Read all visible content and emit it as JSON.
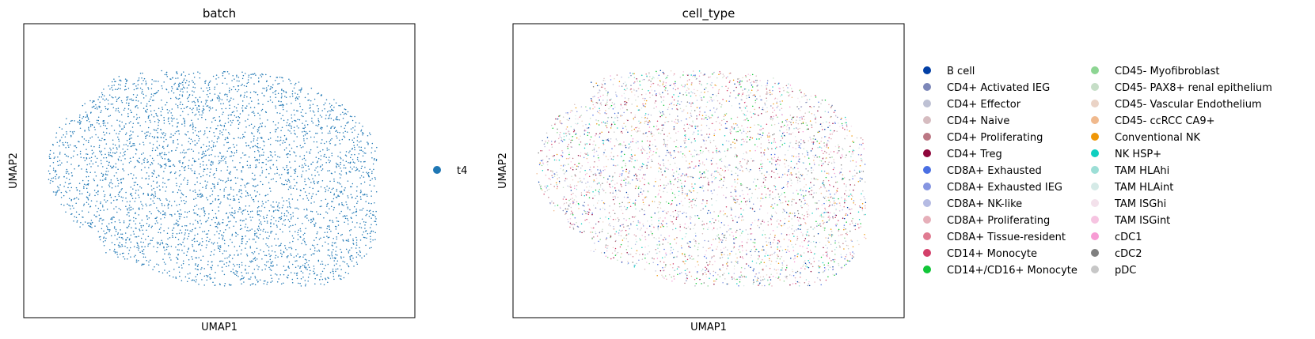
{
  "chart_data": [
    {
      "type": "scatter",
      "title": "batch",
      "xlabel": "UMAP1",
      "ylabel": "UMAP2",
      "xticks": "none",
      "yticks": "none",
      "grid": false,
      "legend_position": "right",
      "point_color_default": "#1f77b4",
      "series": [
        {
          "name": "t4",
          "color": "#1f77b4"
        }
      ]
    },
    {
      "type": "scatter",
      "title": "cell_type",
      "xlabel": "UMAP1",
      "ylabel": "UMAP2",
      "xticks": "none",
      "yticks": "none",
      "grid": false,
      "legend_position": "right",
      "legend_columns": 2,
      "series": [
        {
          "name": "B cell",
          "color": "#023fa5"
        },
        {
          "name": "CD4+ Activated IEG",
          "color": "#7d87b9"
        },
        {
          "name": "CD4+ Effector",
          "color": "#bec1d4"
        },
        {
          "name": "CD4+ Naive",
          "color": "#d6bcc0"
        },
        {
          "name": "CD4+ Proliferating",
          "color": "#bb7784"
        },
        {
          "name": "CD4+ Treg",
          "color": "#8e063b"
        },
        {
          "name": "CD8A+ Exhausted",
          "color": "#4a6fe3"
        },
        {
          "name": "CD8A+ Exhausted IEG",
          "color": "#8595e1"
        },
        {
          "name": "CD8A+ NK-like",
          "color": "#b5bbe3"
        },
        {
          "name": "CD8A+ Proliferating",
          "color": "#e6afb9"
        },
        {
          "name": "CD8A+ Tissue-resident",
          "color": "#e07b91"
        },
        {
          "name": "CD14+ Monocyte",
          "color": "#d33f6a"
        },
        {
          "name": "CD14+/CD16+ Monocyte",
          "color": "#11c638"
        },
        {
          "name": "CD45- Myofibroblast",
          "color": "#8dd593"
        },
        {
          "name": "CD45- PAX8+ renal epithelium",
          "color": "#c6dec7"
        },
        {
          "name": "CD45- Vascular Endothelium",
          "color": "#ead3c6"
        },
        {
          "name": "CD45- ccRCC CA9+",
          "color": "#f0b98d"
        },
        {
          "name": "Conventional NK",
          "color": "#ef9708"
        },
        {
          "name": "NK HSP+",
          "color": "#0fcfc0"
        },
        {
          "name": "TAM HLAhi",
          "color": "#9cded6"
        },
        {
          "name": "TAM HLAint",
          "color": "#d5eae7"
        },
        {
          "name": "TAM ISGhi",
          "color": "#f3e1eb"
        },
        {
          "name": "TAM ISGint",
          "color": "#f6c4e1"
        },
        {
          "name": "cDC1",
          "color": "#f79cd4"
        },
        {
          "name": "cDC2",
          "color": "#7f7f7f"
        },
        {
          "name": "pDC",
          "color": "#c7c7c7"
        }
      ]
    }
  ]
}
